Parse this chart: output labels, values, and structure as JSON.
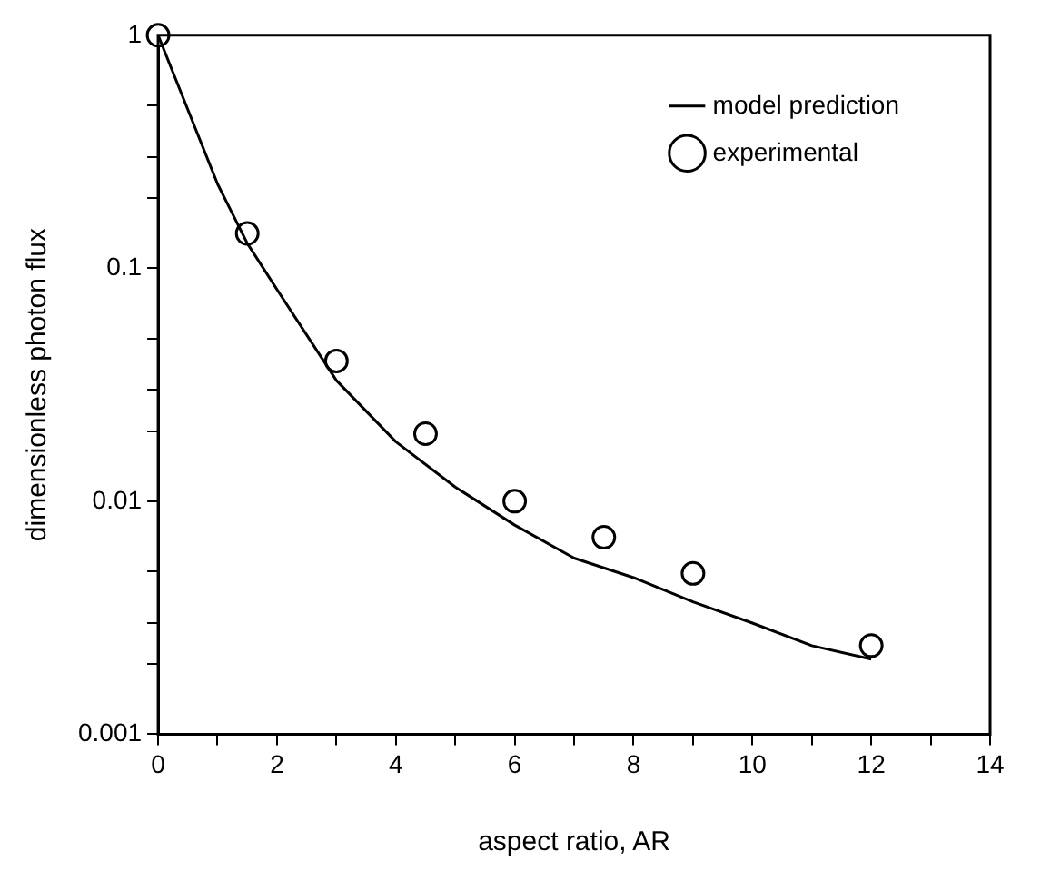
{
  "chart_data": {
    "type": "line",
    "xlabel": "aspect ratio, AR",
    "ylabel": "dimensionless photon flux",
    "log": "y",
    "grid": false,
    "legend": "top right",
    "xlim": [
      0,
      14
    ],
    "xticks": [
      0,
      {
        "value": 1,
        "label": null
      },
      2,
      {
        "value": 3,
        "label": null
      },
      4,
      {
        "value": 5,
        "label": null
      },
      6,
      {
        "value": 7,
        "label": null
      },
      8,
      {
        "value": 9,
        "label": null
      },
      10,
      {
        "value": 11,
        "label": null
      },
      12,
      {
        "value": 13,
        "label": null
      },
      14
    ],
    "ylim": [
      0.001,
      1
    ],
    "yticks": [
      0.001,
      {
        "value": 0.002,
        "label": null
      },
      {
        "value": 0.003,
        "label": null
      },
      {
        "value": 0.005,
        "label": null
      },
      0.01,
      {
        "value": 0.02,
        "label": null
      },
      {
        "value": 0.03,
        "label": null
      },
      {
        "value": 0.05,
        "label": null
      },
      0.1,
      {
        "value": 0.2,
        "label": null
      },
      {
        "value": 0.3,
        "label": null
      },
      {
        "value": 0.5,
        "label": null
      },
      1
    ],
    "series": [
      {
        "name": "model prediction",
        "type": "line",
        "marker": "none",
        "line_style": "solid",
        "color": "#000000",
        "x": [
          0,
          1,
          1.5,
          2,
          3,
          4,
          5,
          6,
          7,
          8,
          9,
          10,
          11,
          12
        ],
        "values": [
          1,
          0.23,
          0.128,
          0.081,
          0.033,
          0.018,
          0.0115,
          0.0079,
          0.0057,
          0.0047,
          0.0037,
          0.003,
          0.0024,
          0.0021
        ]
      },
      {
        "name": "experimental",
        "type": "scatter",
        "marker": "circle",
        "color": "#000000",
        "x": [
          0,
          1.5,
          3,
          4.5,
          6,
          7.5,
          9,
          12
        ],
        "values": [
          1,
          0.141,
          0.04,
          0.0195,
          0.01,
          0.007,
          0.0049,
          0.0024
        ]
      }
    ]
  }
}
